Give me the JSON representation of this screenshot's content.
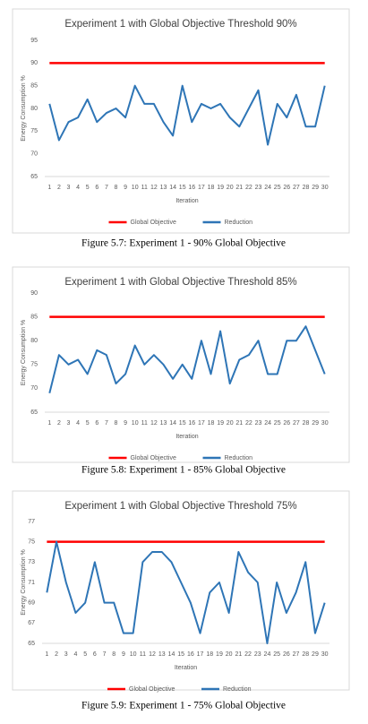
{
  "chart_data": [
    {
      "type": "line",
      "title": "Experiment 1 with Global Objective Threshold 90%",
      "caption": "Figure 5.7: Experiment 1 - 90% Global Objective",
      "x_label": "Iteration",
      "y_label": "Energy Consumption %",
      "categories": [
        1,
        2,
        3,
        4,
        5,
        6,
        7,
        8,
        9,
        10,
        11,
        12,
        13,
        14,
        15,
        16,
        17,
        18,
        19,
        20,
        21,
        22,
        23,
        24,
        25,
        26,
        27,
        28,
        29,
        30
      ],
      "series": [
        {
          "name": "Global Objective",
          "color": "#ff0000",
          "values": [
            90,
            90,
            90,
            90,
            90,
            90,
            90,
            90,
            90,
            90,
            90,
            90,
            90,
            90,
            90,
            90,
            90,
            90,
            90,
            90,
            90,
            90,
            90,
            90,
            90,
            90,
            90,
            90,
            90,
            90
          ]
        },
        {
          "name": "Reduction",
          "color": "#2e75b6",
          "values": [
            81,
            73,
            77,
            78,
            82,
            77,
            79,
            80,
            78,
            85,
            81,
            81,
            77,
            74,
            85,
            77,
            81,
            80,
            81,
            78,
            76,
            80,
            84,
            72,
            81,
            78,
            83,
            76,
            76,
            85
          ]
        }
      ],
      "ylim": [
        65,
        95
      ],
      "yticks": [
        65,
        70,
        75,
        80,
        85,
        90,
        95
      ],
      "grid": false,
      "legend": "bottom"
    },
    {
      "type": "line",
      "title": "Experiment 1 with Global Objective Threshold 85%",
      "caption": "Figure 5.8: Experiment 1 - 85% Global Objective",
      "x_label": "Iteration",
      "y_label": "Energy Consumption %",
      "categories": [
        1,
        2,
        3,
        4,
        5,
        6,
        7,
        8,
        9,
        10,
        11,
        12,
        13,
        14,
        15,
        16,
        17,
        18,
        19,
        20,
        21,
        22,
        23,
        24,
        25,
        26,
        27,
        28,
        29,
        30
      ],
      "series": [
        {
          "name": "Global Objective",
          "color": "#ff0000",
          "values": [
            85,
            85,
            85,
            85,
            85,
            85,
            85,
            85,
            85,
            85,
            85,
            85,
            85,
            85,
            85,
            85,
            85,
            85,
            85,
            85,
            85,
            85,
            85,
            85,
            85,
            85,
            85,
            85,
            85,
            85
          ]
        },
        {
          "name": "Reduction",
          "color": "#2e75b6",
          "values": [
            69,
            77,
            75,
            76,
            73,
            78,
            77,
            71,
            73,
            79,
            75,
            77,
            75,
            72,
            75,
            72,
            80,
            73,
            82,
            71,
            76,
            77,
            80,
            73,
            73,
            80,
            80,
            83,
            78,
            73
          ]
        }
      ],
      "ylim": [
        65,
        90
      ],
      "yticks": [
        65,
        70,
        75,
        80,
        85,
        90
      ],
      "grid": false,
      "legend": "bottom"
    },
    {
      "type": "line",
      "title": "Experiment 1 with Global Objective Threshold 75%",
      "caption": "Figure 5.9: Experiment 1 - 75% Global Objective",
      "x_label": "Iteration",
      "y_label": "Energy Consumption %",
      "categories": [
        1,
        2,
        3,
        4,
        5,
        6,
        7,
        8,
        9,
        10,
        11,
        12,
        13,
        14,
        15,
        16,
        17,
        18,
        19,
        20,
        21,
        22,
        23,
        24,
        25,
        26,
        27,
        28,
        29,
        30
      ],
      "series": [
        {
          "name": "Global Objective",
          "color": "#ff0000",
          "values": [
            75,
            75,
            75,
            75,
            75,
            75,
            75,
            75,
            75,
            75,
            75,
            75,
            75,
            75,
            75,
            75,
            75,
            75,
            75,
            75,
            75,
            75,
            75,
            75,
            75,
            75,
            75,
            75,
            75,
            75
          ]
        },
        {
          "name": "Reduction",
          "color": "#2e75b6",
          "values": [
            70,
            75,
            71,
            68,
            69,
            73,
            69,
            69,
            66,
            66,
            73,
            74,
            74,
            73,
            71,
            69,
            66,
            70,
            71,
            68,
            74,
            72,
            71,
            65,
            71,
            68,
            70,
            73,
            66,
            69
          ]
        }
      ],
      "ylim": [
        65,
        77
      ],
      "yticks": [
        65,
        67,
        69,
        71,
        73,
        75,
        77
      ],
      "grid": false,
      "legend": "bottom"
    }
  ]
}
